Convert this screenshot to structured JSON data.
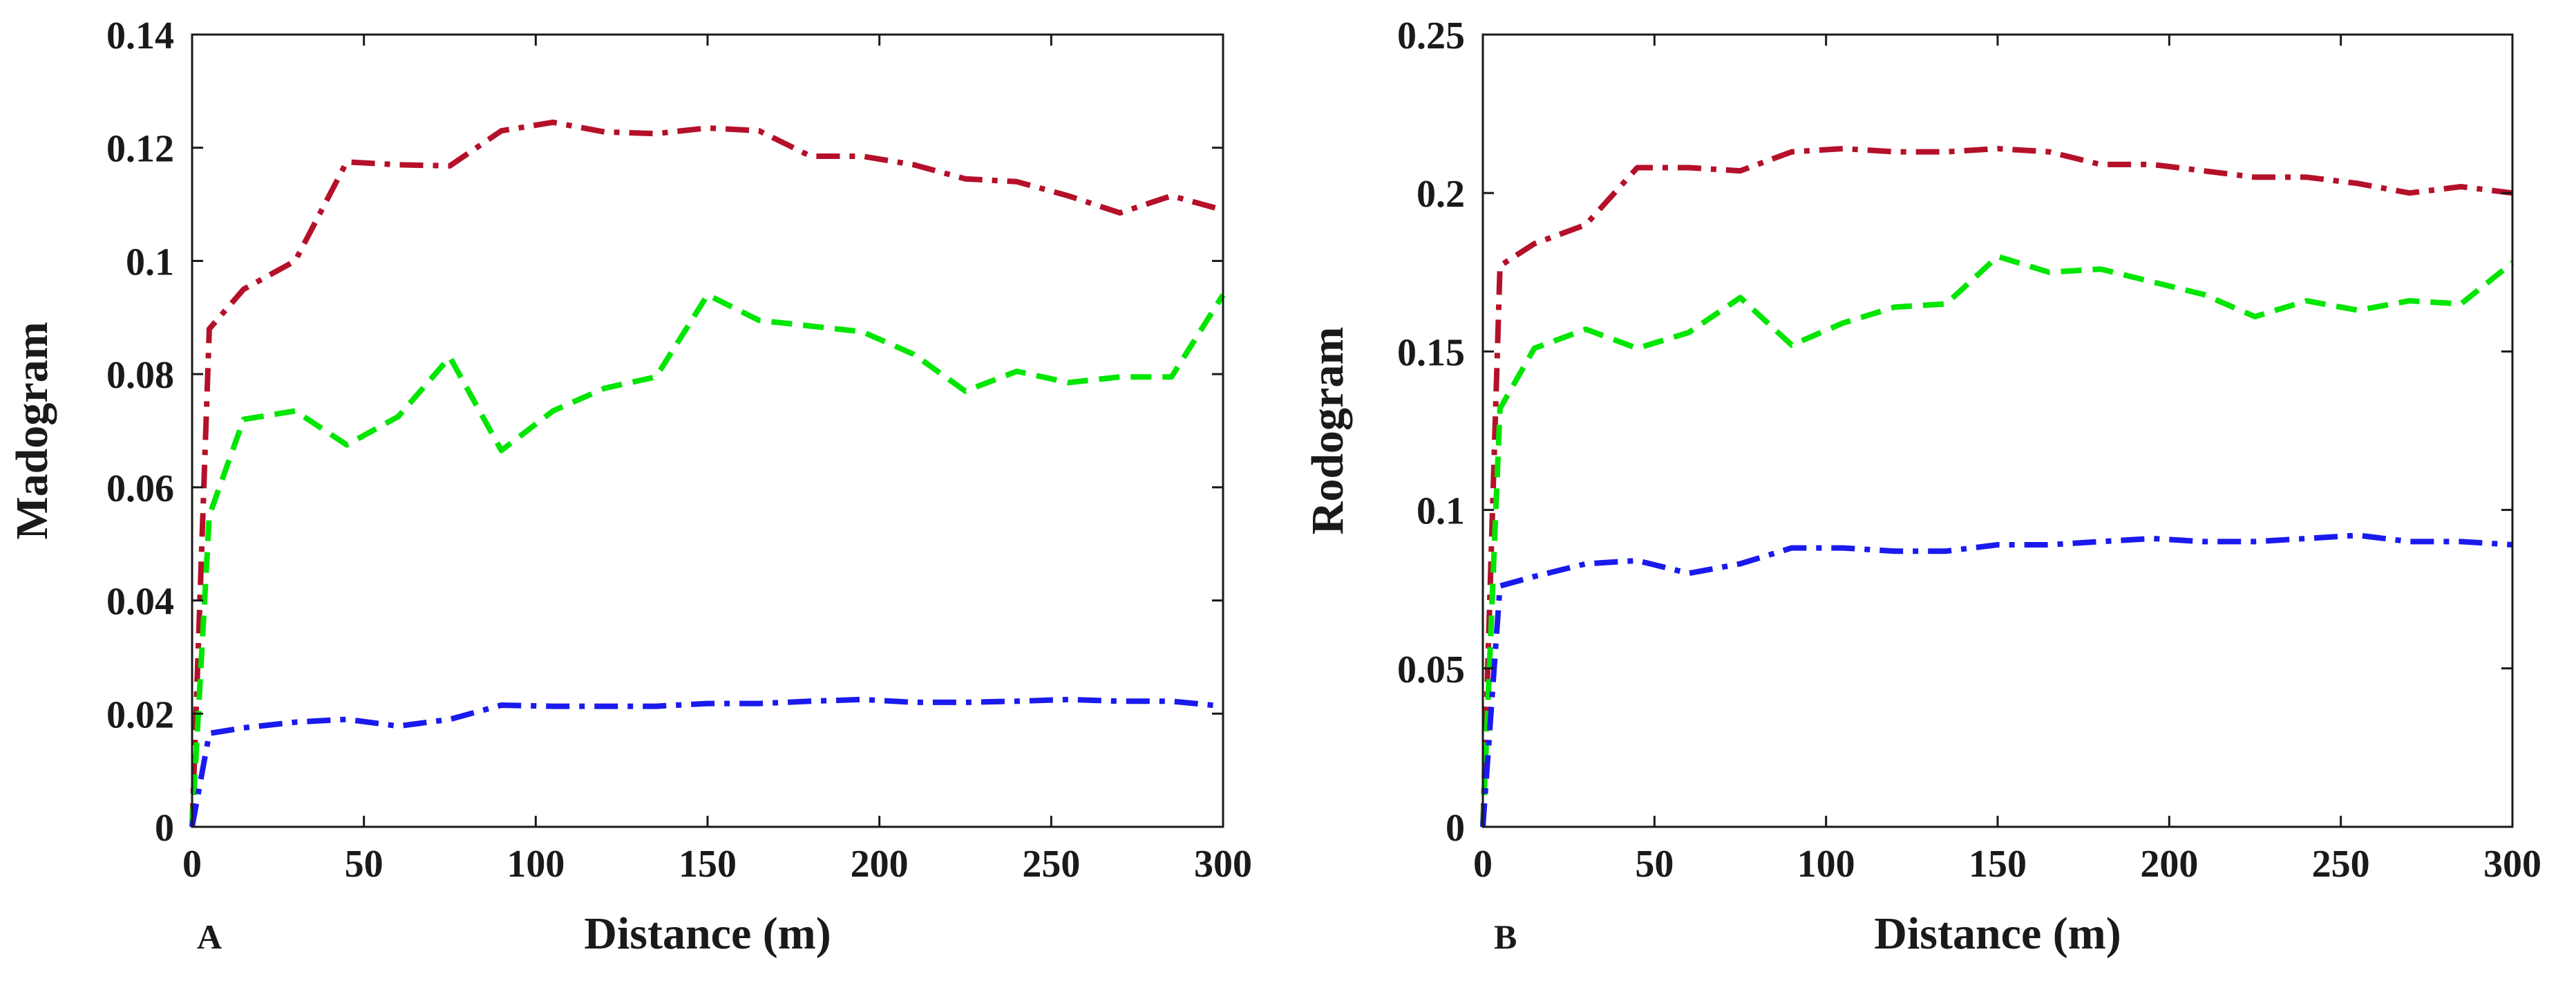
{
  "chart_data": [
    {
      "type": "line",
      "panel_label": "A",
      "xlabel": "Distance (m)",
      "ylabel": "Madogram",
      "xlim": [
        0,
        300
      ],
      "ylim": [
        0,
        0.14
      ],
      "xticks": [
        0,
        50,
        100,
        150,
        200,
        250,
        300
      ],
      "xtick_labels": [
        "0",
        "50",
        "100",
        "150",
        "200",
        "250",
        "300"
      ],
      "yticks": [
        0,
        0.02,
        0.04,
        0.06,
        0.08,
        0.1,
        0.12,
        0.14
      ],
      "ytick_labels": [
        "0",
        "0.02",
        "0.04",
        "0.06",
        "0.08",
        "0.1",
        "0.12",
        "0.14"
      ],
      "grid": false,
      "x": [
        0,
        5,
        15,
        30,
        45,
        60,
        75,
        90,
        105,
        120,
        135,
        150,
        165,
        180,
        195,
        210,
        225,
        240,
        255,
        270,
        285,
        300
      ],
      "series": [
        {
          "name": "red",
          "color": "#b5102a",
          "dash": "dash-dot",
          "values": [
            0,
            0.088,
            0.095,
            0.1,
            0.1175,
            0.117,
            0.1168,
            0.123,
            0.1245,
            0.1228,
            0.1225,
            0.1235,
            0.123,
            0.1185,
            0.1185,
            0.117,
            0.1145,
            0.114,
            0.1115,
            0.1085,
            0.1115,
            0.109
          ]
        },
        {
          "name": "green",
          "color": "#00e600",
          "dash": "dashed",
          "values": [
            0,
            0.055,
            0.072,
            0.0735,
            0.0675,
            0.0725,
            0.083,
            0.0665,
            0.0735,
            0.0775,
            0.0795,
            0.094,
            0.0895,
            0.0885,
            0.0875,
            0.0835,
            0.077,
            0.0805,
            0.0785,
            0.0795,
            0.0795,
            0.094
          ]
        },
        {
          "name": "blue",
          "color": "#1a1aee",
          "dash": "dash-dot",
          "values": [
            0,
            0.0165,
            0.0175,
            0.0185,
            0.019,
            0.0178,
            0.019,
            0.0215,
            0.0213,
            0.0213,
            0.0213,
            0.0218,
            0.0218,
            0.0222,
            0.0225,
            0.022,
            0.022,
            0.0222,
            0.0225,
            0.0222,
            0.0222,
            0.0213
          ]
        }
      ]
    },
    {
      "type": "line",
      "panel_label": "B",
      "xlabel": "Distance (m)",
      "ylabel": "Rodogram",
      "xlim": [
        0,
        300
      ],
      "ylim": [
        0,
        0.25
      ],
      "xticks": [
        0,
        50,
        100,
        150,
        200,
        250,
        300
      ],
      "xtick_labels": [
        "0",
        "50",
        "100",
        "150",
        "200",
        "250",
        "300"
      ],
      "yticks": [
        0,
        0.05,
        0.1,
        0.15,
        0.2,
        0.25
      ],
      "ytick_labels": [
        "0",
        "0.05",
        "0.1",
        "0.15",
        "0.2",
        "0.25"
      ],
      "grid": false,
      "x": [
        0,
        5,
        15,
        30,
        45,
        60,
        75,
        90,
        105,
        120,
        135,
        150,
        165,
        180,
        195,
        210,
        225,
        240,
        255,
        270,
        285,
        300
      ],
      "series": [
        {
          "name": "red",
          "color": "#b5102a",
          "dash": "dash-dot",
          "values": [
            0,
            0.177,
            0.184,
            0.19,
            0.208,
            0.208,
            0.207,
            0.213,
            0.214,
            0.213,
            0.213,
            0.214,
            0.213,
            0.209,
            0.209,
            0.207,
            0.205,
            0.205,
            0.203,
            0.2,
            0.202,
            0.2
          ]
        },
        {
          "name": "green",
          "color": "#00e600",
          "dash": "dashed",
          "values": [
            0,
            0.132,
            0.151,
            0.157,
            0.151,
            0.156,
            0.167,
            0.152,
            0.159,
            0.164,
            0.165,
            0.18,
            0.175,
            0.176,
            0.172,
            0.168,
            0.161,
            0.166,
            0.163,
            0.166,
            0.165,
            0.178
          ]
        },
        {
          "name": "blue",
          "color": "#1a1aee",
          "dash": "dash-dot",
          "values": [
            0,
            0.076,
            0.079,
            0.083,
            0.084,
            0.08,
            0.083,
            0.088,
            0.088,
            0.087,
            0.087,
            0.089,
            0.089,
            0.09,
            0.091,
            0.09,
            0.09,
            0.091,
            0.092,
            0.09,
            0.09,
            0.089
          ]
        }
      ]
    }
  ]
}
